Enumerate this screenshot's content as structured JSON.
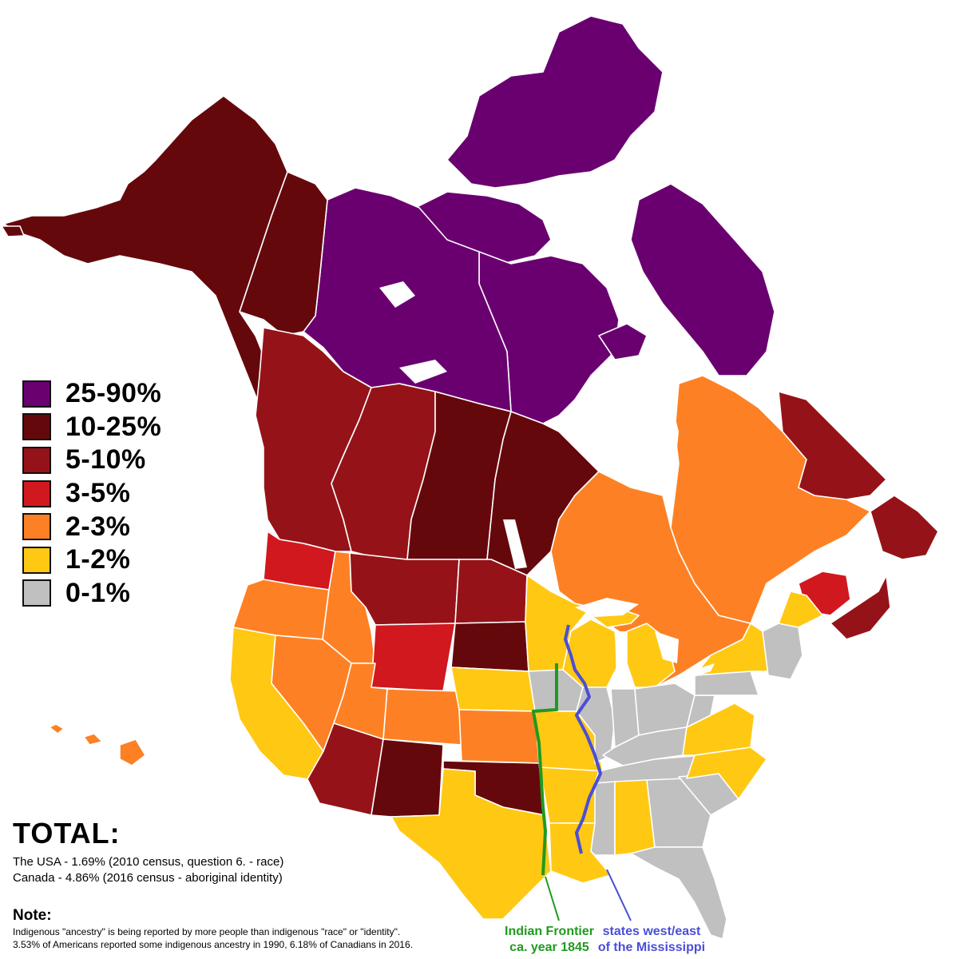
{
  "colors": {
    "c25_90": "#6a0070",
    "c10_25": "#65080c",
    "c5_10": "#951318",
    "c3_5": "#d0181e",
    "c2_3": "#fd8124",
    "c1_2": "#ffc813",
    "c0_1": "#c0c0c0",
    "frontier": "#1f9a1f",
    "mississippi": "#4a4ed6"
  },
  "legend": [
    {
      "label": "25-90%",
      "color": "#6a0070"
    },
    {
      "label": "10-25%",
      "color": "#65080c"
    },
    {
      "label": "5-10%",
      "color": "#951318"
    },
    {
      "label": "3-5%",
      "color": "#d0181e"
    },
    {
      "label": "2-3%",
      "color": "#fd8124"
    },
    {
      "label": "1-2%",
      "color": "#ffc813"
    },
    {
      "label": "0-1%",
      "color": "#c0c0c0"
    }
  ],
  "total": {
    "heading": "TOTAL:",
    "usa": "The USA - 1.69% (2010 census, question 6. - race)",
    "canada": "Canada - 4.86% (2016 census - aboriginal identity)"
  },
  "note": {
    "heading": "Note:",
    "line1": "Indigenous \"ancestry\" is being reported by more people than indigenous \"race\" or \"identity\".",
    "line2": "3.53% of Americans reported some indigenous ancestry in 1990, 6.18% of Canadians in 2016."
  },
  "annotations": {
    "frontier_line1": "Indian Frontier",
    "frontier_line2": "ca. year 1845",
    "mississippi_line1": "states west/east",
    "mississippi_line2": "of the Mississippi"
  },
  "regions": [
    {
      "name": "Nunavut",
      "category": "25-90%"
    },
    {
      "name": "Northwest Territories",
      "category": "25-90%"
    },
    {
      "name": "Alaska",
      "category": "10-25%"
    },
    {
      "name": "Yukon",
      "category": "10-25%"
    },
    {
      "name": "Saskatchewan",
      "category": "10-25%"
    },
    {
      "name": "Manitoba",
      "category": "10-25%"
    },
    {
      "name": "South Dakota",
      "category": "10-25%"
    },
    {
      "name": "New Mexico",
      "category": "10-25%"
    },
    {
      "name": "Oklahoma",
      "category": "10-25%"
    },
    {
      "name": "British Columbia",
      "category": "5-10%"
    },
    {
      "name": "Alberta",
      "category": "5-10%"
    },
    {
      "name": "Montana",
      "category": "5-10%"
    },
    {
      "name": "North Dakota",
      "category": "5-10%"
    },
    {
      "name": "Arizona",
      "category": "5-10%"
    },
    {
      "name": "Newfoundland and Labrador",
      "category": "5-10%"
    },
    {
      "name": "Nova Scotia",
      "category": "5-10%"
    },
    {
      "name": "Washington",
      "category": "3-5%"
    },
    {
      "name": "Wyoming",
      "category": "3-5%"
    },
    {
      "name": "New Brunswick",
      "category": "3-5%"
    },
    {
      "name": "Oregon",
      "category": "2-3%"
    },
    {
      "name": "Idaho",
      "category": "2-3%"
    },
    {
      "name": "Nevada",
      "category": "2-3%"
    },
    {
      "name": "Utah",
      "category": "2-3%"
    },
    {
      "name": "Colorado",
      "category": "2-3%"
    },
    {
      "name": "Kansas",
      "category": "2-3%"
    },
    {
      "name": "Hawaii",
      "category": "2-3%"
    },
    {
      "name": "Ontario",
      "category": "2-3%"
    },
    {
      "name": "Quebec",
      "category": "2-3%"
    },
    {
      "name": "California",
      "category": "1-2%"
    },
    {
      "name": "Nebraska",
      "category": "1-2%"
    },
    {
      "name": "Texas",
      "category": "1-2%"
    },
    {
      "name": "Minnesota",
      "category": "1-2%"
    },
    {
      "name": "Wisconsin",
      "category": "1-2%"
    },
    {
      "name": "Michigan",
      "category": "1-2%"
    },
    {
      "name": "Missouri",
      "category": "1-2%"
    },
    {
      "name": "Arkansas",
      "category": "1-2%"
    },
    {
      "name": "Louisiana",
      "category": "1-2%"
    },
    {
      "name": "Alabama",
      "category": "1-2%"
    },
    {
      "name": "North Carolina",
      "category": "1-2%"
    },
    {
      "name": "Virginia",
      "category": "1-2%"
    },
    {
      "name": "New York",
      "category": "1-2%"
    },
    {
      "name": "Maine",
      "category": "1-2%"
    },
    {
      "name": "Iowa",
      "category": "0-1%"
    },
    {
      "name": "Illinois",
      "category": "0-1%"
    },
    {
      "name": "Indiana",
      "category": "0-1%"
    },
    {
      "name": "Ohio",
      "category": "0-1%"
    },
    {
      "name": "Kentucky",
      "category": "0-1%"
    },
    {
      "name": "Tennessee",
      "category": "0-1%"
    },
    {
      "name": "Mississippi",
      "category": "0-1%"
    },
    {
      "name": "Georgia",
      "category": "0-1%"
    },
    {
      "name": "Florida",
      "category": "0-1%"
    },
    {
      "name": "South Carolina",
      "category": "0-1%"
    },
    {
      "name": "West Virginia",
      "category": "0-1%"
    },
    {
      "name": "Pennsylvania",
      "category": "0-1%"
    },
    {
      "name": "New England",
      "category": "0-1%"
    }
  ]
}
